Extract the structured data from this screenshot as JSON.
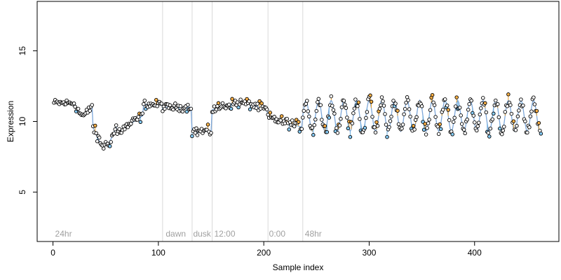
{
  "chart_data": {
    "type": "scatter",
    "xlabel": "Sample index",
    "ylabel": "Expression",
    "xlim": [
      -15,
      480
    ],
    "ylim": [
      1.5,
      18.5
    ],
    "x_ticks": [
      0,
      100,
      200,
      300,
      400
    ],
    "y_ticks": [
      5,
      10,
      15
    ],
    "grid": false,
    "legend": "none",
    "colors": {
      "point_fill_default": "#ffffff",
      "point_fill_above": "#ffb347",
      "point_fill_below": "#87cefa",
      "point_stroke": "#000000",
      "fit_line": "#7da7d9",
      "resid_above": "#e8a030",
      "resid_below": "#6aaee0",
      "divider": "#d9d9d9",
      "phase_label": "#a0a0a0"
    },
    "phase_boundaries": [
      104,
      132,
      151,
      204,
      237
    ],
    "phase_labels": [
      {
        "x": 2,
        "text": "24hr"
      },
      {
        "x": 107,
        "text": "dawn"
      },
      {
        "x": 133,
        "text": "dusk"
      },
      {
        "x": 153,
        "text": "12:00"
      },
      {
        "x": 205,
        "text": "0:00"
      },
      {
        "x": 239,
        "text": "48hr"
      }
    ],
    "segments": [
      {
        "x_start": 1,
        "x_end": 20,
        "pattern": "flat",
        "base": 11.3,
        "noise": 0.22
      },
      {
        "x_start": 21,
        "x_end": 37,
        "pattern": "dip",
        "base": 11.2,
        "depth": 1.3,
        "noise": 0.3
      },
      {
        "x_start": 38,
        "x_end": 60,
        "pattern": "valley",
        "base": 9.6,
        "depth": 1.3,
        "noise": 0.35
      },
      {
        "x_start": 61,
        "x_end": 85,
        "pattern": "rise",
        "from": 9.2,
        "to": 10.4,
        "noise": 0.3
      },
      {
        "x_start": 86,
        "x_end": 103,
        "pattern": "flat",
        "base": 11.2,
        "noise": 0.25
      },
      {
        "x_start": 104,
        "x_end": 131,
        "pattern": "flat",
        "base": 11.0,
        "noise": 0.22
      },
      {
        "x_start": 132,
        "x_end": 150,
        "pattern": "flat",
        "base": 9.3,
        "noise": 0.3
      },
      {
        "x_start": 151,
        "x_end": 203,
        "pattern": "hump",
        "base": 10.8,
        "height": 0.5,
        "noise": 0.3
      },
      {
        "x_start": 204,
        "x_end": 236,
        "pattern": "decline",
        "from": 10.3,
        "to": 9.6,
        "noise": 0.3
      },
      {
        "x_start": 237,
        "x_end": 463,
        "pattern": "oscillate",
        "base": 10.4,
        "amp": 1.1,
        "period": 12,
        "noise": 0.4
      }
    ]
  }
}
